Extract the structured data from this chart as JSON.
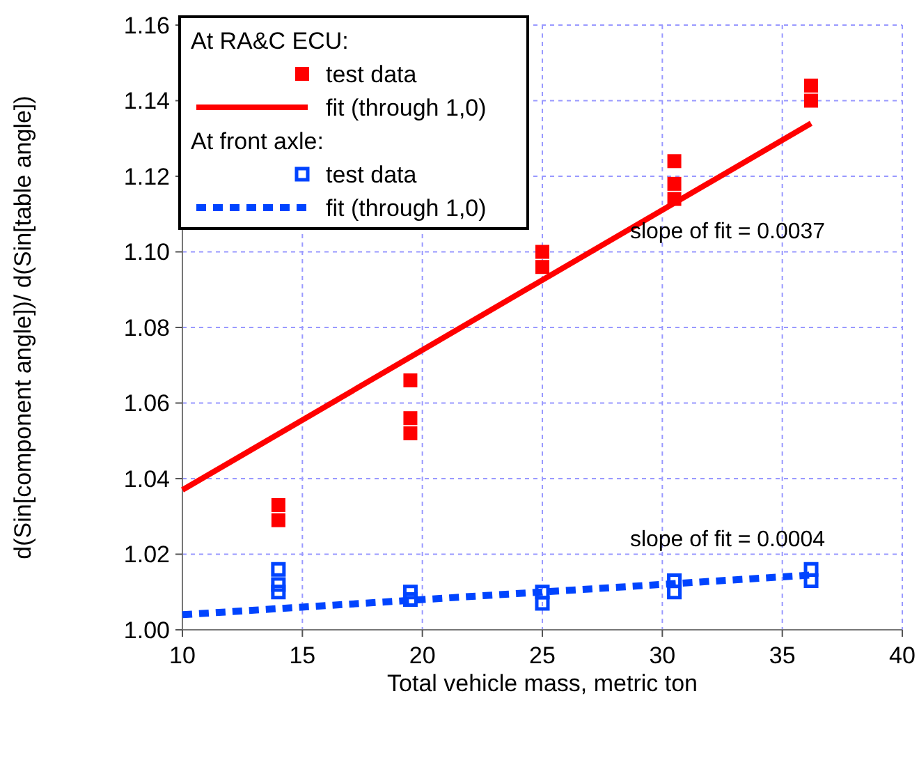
{
  "chart_data": {
    "type": "scatter",
    "xlabel": "Total vehicle mass, metric ton",
    "ylabel": "d(Sin[component angle])/ d(Sin[table angle])",
    "xlim": [
      10,
      40
    ],
    "ylim": [
      1.0,
      1.16
    ],
    "xticks": [
      10,
      15,
      20,
      25,
      30,
      35,
      40
    ],
    "yticks": [
      {
        "value": 1.0,
        "label": "1.00"
      },
      {
        "value": 1.02,
        "label": "1.02"
      },
      {
        "value": 1.04,
        "label": "1.04"
      },
      {
        "value": 1.06,
        "label": "1.06"
      },
      {
        "value": 1.08,
        "label": "1.08"
      },
      {
        "value": 1.1,
        "label": "1.10"
      },
      {
        "value": 1.12,
        "label": "1.12"
      },
      {
        "value": 1.14,
        "label": "1.14"
      },
      {
        "value": 1.16,
        "label": "1.16"
      }
    ],
    "grid": true,
    "legend": "top left",
    "legend_title": "At RA&C ECU:",
    "series": [
      {
        "name": "test data",
        "marker": "square",
        "color": "#ff0000",
        "x": [
          14,
          14,
          19.5,
          19.5,
          19.5,
          25,
          25,
          30.5,
          30.5,
          30.5,
          36.2,
          36.2
        ],
        "values": [
          1.033,
          1.029,
          1.066,
          1.056,
          1.052,
          1.1,
          1.096,
          1.124,
          1.118,
          1.114,
          1.144,
          1.14
        ]
      },
      {
        "name": "fit (through 1,0)",
        "type": "line",
        "line_style": "solid",
        "color": "#ff0000",
        "x": [
          10,
          36.2
        ],
        "values": [
          1.037,
          1.134
        ]
      },
      {
        "name": "test data",
        "marker": "square-open",
        "color": "#0044ff",
        "x": [
          14,
          14,
          14,
          19.5,
          19.5,
          25,
          25,
          30.5,
          30.5,
          36.2,
          36.2
        ],
        "values": [
          1.016,
          1.012,
          1.01,
          1.01,
          1.008,
          1.01,
          1.007,
          1.013,
          1.01,
          1.016,
          1.013
        ]
      },
      {
        "name": "fit (through 1,0)",
        "type": "line",
        "line_style": "dashed",
        "color": "#0044ff",
        "x": [
          10,
          36.2
        ],
        "values": [
          1.004,
          1.0145
        ]
      }
    ],
    "annotations": [
      "At front axle:",
      "slope of fit = 0.0037",
      "slope of fit = 0.0004"
    ]
  }
}
